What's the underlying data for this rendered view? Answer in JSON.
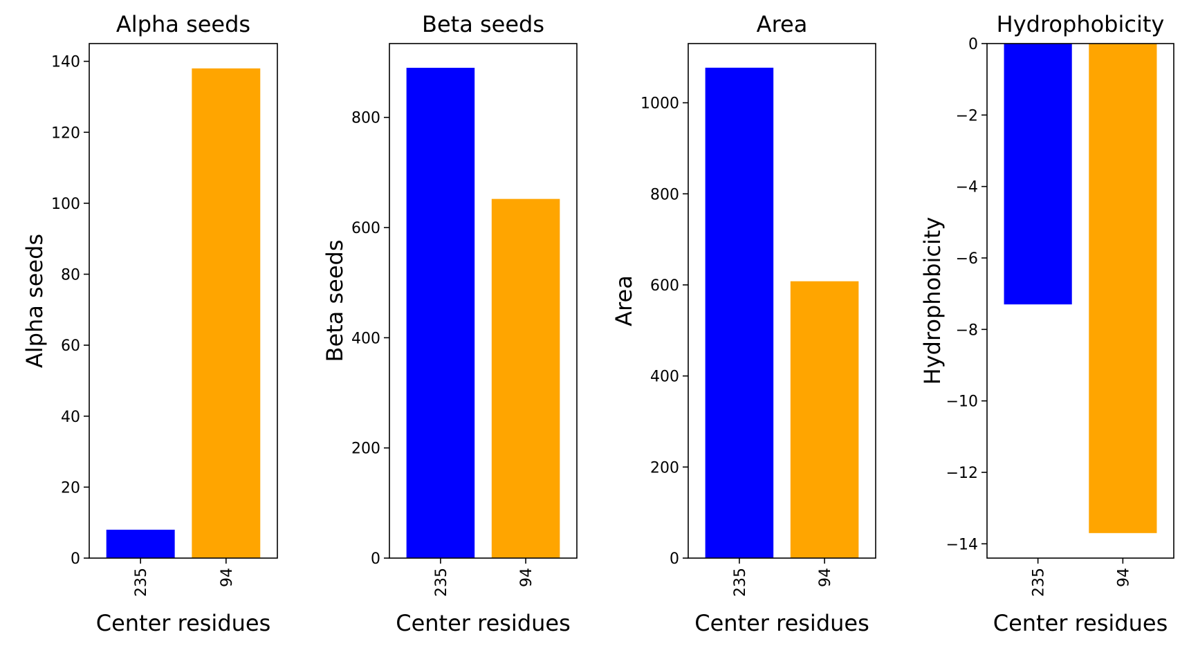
{
  "chart_data": [
    {
      "type": "bar",
      "title": "Alpha seeds",
      "xlabel": "Center residues",
      "ylabel": "Alpha seeds",
      "categories": [
        "235",
        "94"
      ],
      "values": [
        8,
        138
      ],
      "colors": [
        "#0000ff",
        "#ffa500"
      ],
      "ylim": [
        0,
        145
      ],
      "yticks": [
        0,
        20,
        40,
        60,
        80,
        100,
        120,
        140
      ],
      "ytick_labels": [
        "0",
        "20",
        "40",
        "60",
        "80",
        "100",
        "120",
        "140"
      ]
    },
    {
      "type": "bar",
      "title": "Beta seeds",
      "xlabel": "Center residues",
      "ylabel": "Beta seeds",
      "categories": [
        "235",
        "94"
      ],
      "values": [
        890,
        652
      ],
      "colors": [
        "#0000ff",
        "#ffa500"
      ],
      "ylim": [
        0,
        934
      ],
      "yticks": [
        0,
        200,
        400,
        600,
        800
      ],
      "ytick_labels": [
        "0",
        "200",
        "400",
        "600",
        "800"
      ]
    },
    {
      "type": "bar",
      "title": "Area",
      "xlabel": "Center residues",
      "ylabel": "Area",
      "categories": [
        "235",
        "94"
      ],
      "values": [
        1077,
        608
      ],
      "colors": [
        "#0000ff",
        "#ffa500"
      ],
      "ylim": [
        0,
        1130
      ],
      "yticks": [
        0,
        200,
        400,
        600,
        800,
        1000
      ],
      "ytick_labels": [
        "0",
        "200",
        "400",
        "600",
        "800",
        "1000"
      ]
    },
    {
      "type": "bar",
      "title": "Hydrophobicity",
      "xlabel": "Center residues",
      "ylabel": "Hydrophobicity",
      "categories": [
        "235",
        "94"
      ],
      "values": [
        -7.3,
        -13.7
      ],
      "colors": [
        "#0000ff",
        "#ffa500"
      ],
      "ylim": [
        -14.4,
        0
      ],
      "yticks": [
        0,
        -2,
        -4,
        -6,
        -8,
        -10,
        -12,
        -14
      ],
      "ytick_labels": [
        "0",
        "−2",
        "−4",
        "−6",
        "−8",
        "−10",
        "−12",
        "−14"
      ]
    }
  ]
}
